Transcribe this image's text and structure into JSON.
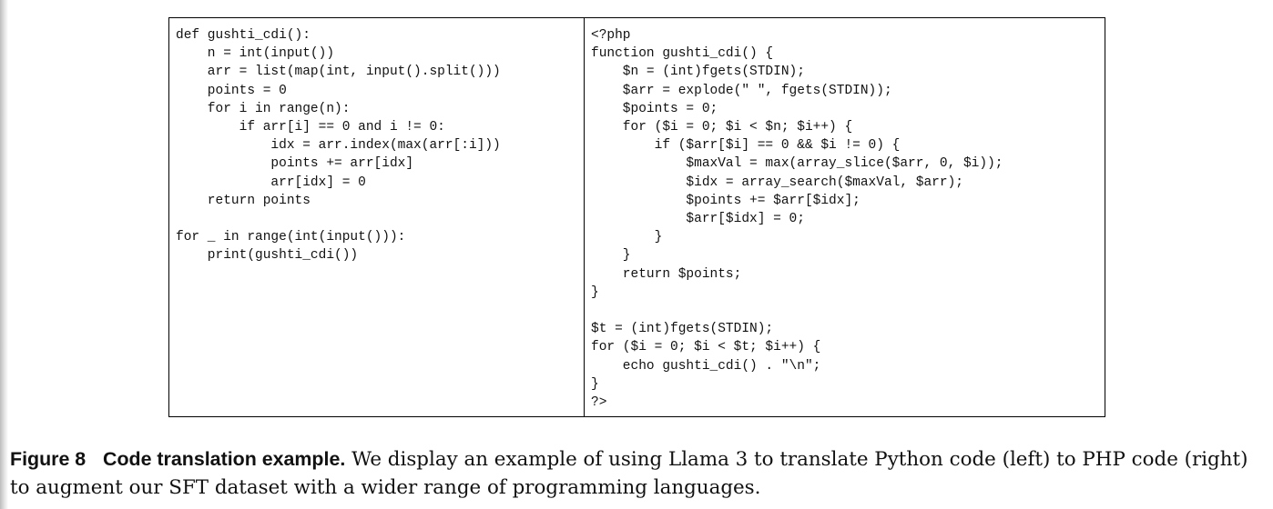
{
  "figure": {
    "python_code": "def gushti_cdi():\n    n = int(input())\n    arr = list(map(int, input().split()))\n    points = 0\n    for i in range(n):\n        if arr[i] == 0 and i != 0:\n            idx = arr.index(max(arr[:i]))\n            points += arr[idx]\n            arr[idx] = 0\n    return points\n\nfor _ in range(int(input())):\n    print(gushti_cdi())",
    "php_code": "<?php\nfunction gushti_cdi() {\n    $n = (int)fgets(STDIN);\n    $arr = explode(\" \", fgets(STDIN));\n    $points = 0;\n    for ($i = 0; $i < $n; $i++) {\n        if ($arr[$i] == 0 && $i != 0) {\n            $maxVal = max(array_slice($arr, 0, $i));\n            $idx = array_search($maxVal, $arr);\n            $points += $arr[$idx];\n            $arr[$idx] = 0;\n        }\n    }\n    return $points;\n}\n\n$t = (int)fgets(STDIN);\nfor ($i = 0; $i < $t; $i++) {\n    echo gushti_cdi() . \"\\n\";\n}\n?>"
  },
  "caption": {
    "label": "Figure 8",
    "title": "Code translation example.",
    "text": "We display an example of using Llama 3 to translate Python code (left) to PHP code (right) to augment our SFT dataset with a wider range of programming languages."
  }
}
